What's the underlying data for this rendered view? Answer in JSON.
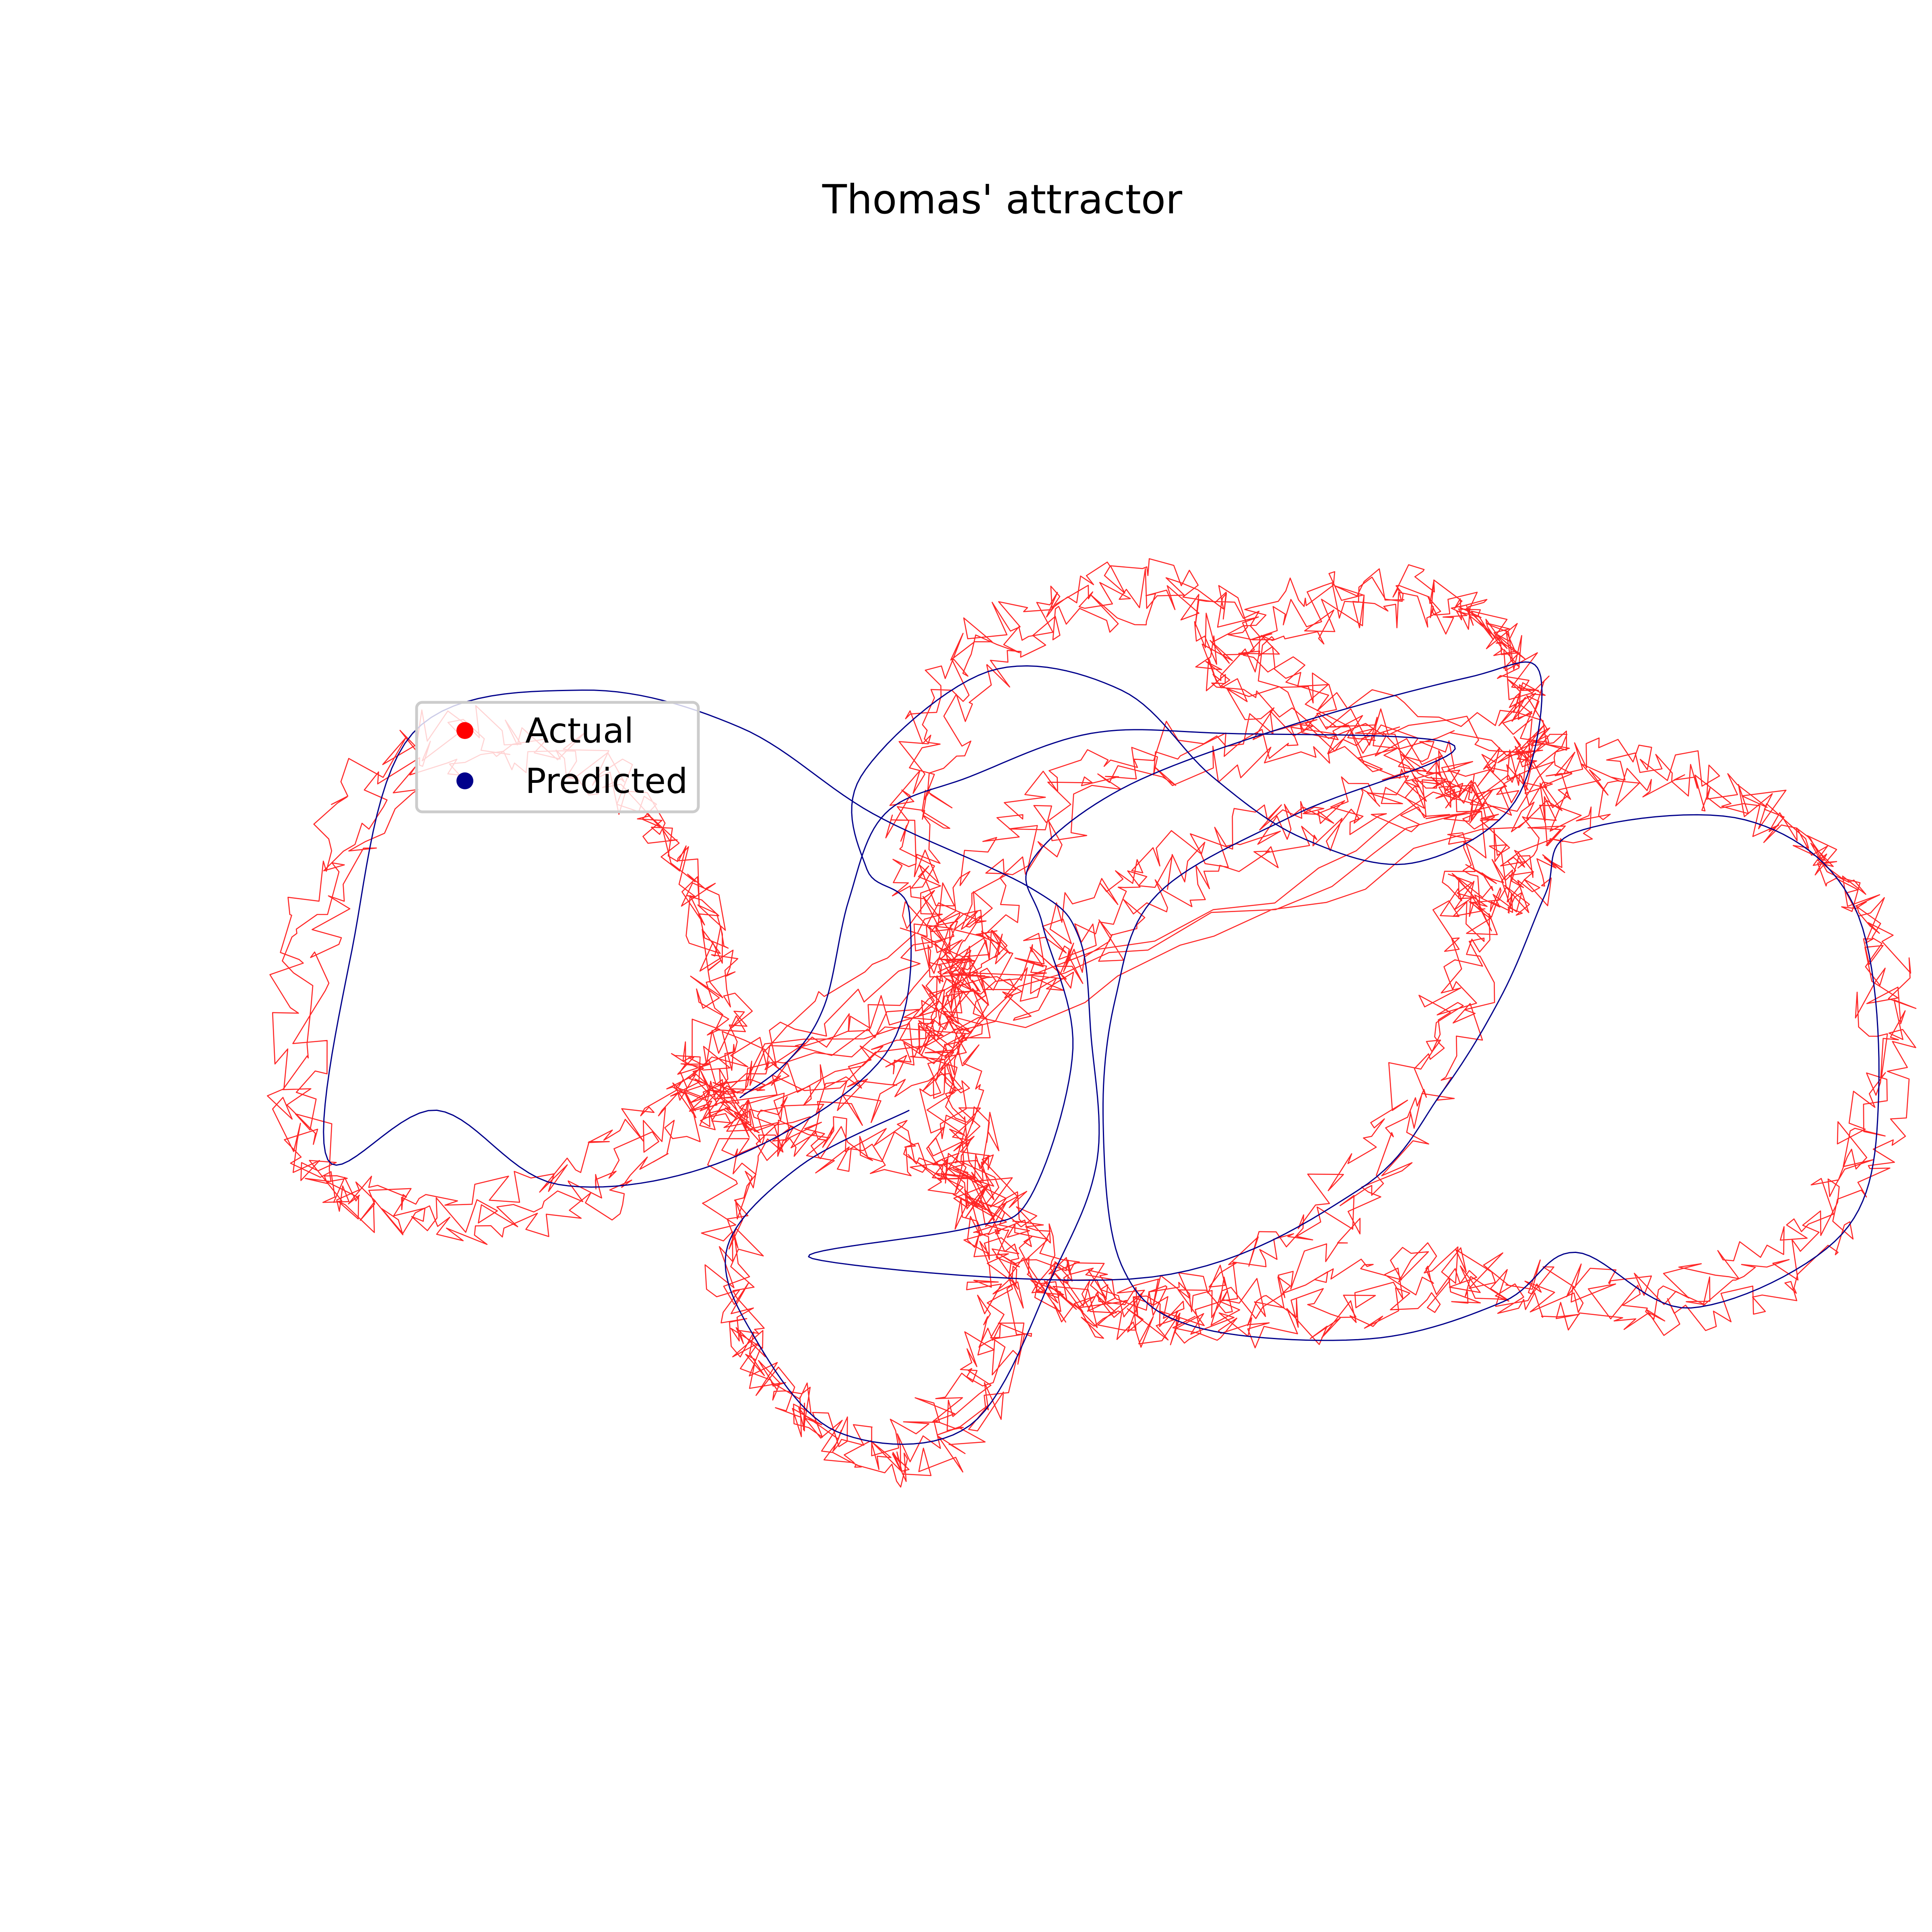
{
  "chart_data": {
    "type": "line",
    "title": "Thomas' attractor",
    "axes_visible": false,
    "grid": false,
    "legend_placement": "center-left",
    "series": [
      {
        "name": "Actual",
        "color": "#ff0000",
        "style": "thin noisy line",
        "values": [
          [
            3.77,
            1.5
          ],
          [
            2.5,
            1.8
          ],
          [
            0.7,
            1.45
          ],
          [
            -0.2,
            0.45
          ],
          [
            -0.55,
            -0.9
          ],
          [
            -0.05,
            -2.15
          ],
          [
            0.6,
            -2.8
          ],
          [
            1.6,
            -2.75
          ],
          [
            2.7,
            -2.05
          ],
          [
            3.55,
            -0.8
          ],
          [
            3.82,
            0.45
          ],
          [
            3.75,
            1.4
          ],
          [
            1.75,
            2.25
          ],
          [
            2.4,
            2.85
          ],
          [
            3.45,
            2.95
          ],
          [
            4.1,
            2.6
          ],
          [
            4.35,
            1.95
          ],
          [
            4.1,
            1.45
          ],
          [
            3.3,
            1.3
          ],
          [
            2.3,
            1.1
          ],
          [
            1.2,
            0.65
          ],
          [
            0.45,
            0.05
          ],
          [
            -0.15,
            -0.3
          ],
          [
            -2.3,
            -1.0
          ],
          [
            -1.85,
            -1.4
          ],
          [
            -0.85,
            -1.55
          ],
          [
            -0.3,
            -1.9
          ],
          [
            -0.05,
            -2.7
          ],
          [
            -0.25,
            -3.5
          ],
          [
            -0.95,
            -4.0
          ],
          [
            -1.75,
            -3.6
          ],
          [
            -2.25,
            -2.75
          ],
          [
            -2.05,
            -1.45
          ],
          [
            -0.9,
            -0.9
          ],
          [
            -0.35,
            -0.25
          ],
          [
            -0.6,
            0.3
          ],
          [
            -0.75,
            1.2
          ],
          [
            -0.35,
            2.3
          ],
          [
            0.5,
            2.9
          ],
          [
            1.6,
            2.95
          ],
          [
            2.7,
            2.05
          ],
          [
            4.35,
            1.45
          ],
          [
            -2.0,
            -0.95
          ],
          [
            -2.3,
            -0.5
          ],
          [
            -2.5,
            0.5
          ],
          [
            -3.3,
            1.5
          ],
          [
            -4.7,
            1.75
          ],
          [
            -5.7,
            0.5
          ],
          [
            -5.8,
            -1.5
          ],
          [
            -5.0,
            -2.0
          ],
          [
            -3.7,
            -1.9
          ],
          [
            -2.75,
            -1.25
          ],
          [
            -2.15,
            -0.85
          ],
          [
            -0.2,
            0.3
          ],
          [
            -0.45,
            -0.6
          ],
          [
            -0.25,
            -1.5
          ],
          [
            0.45,
            -2.45
          ],
          [
            1.35,
            -2.85
          ],
          [
            2.5,
            -2.8
          ],
          [
            3.5,
            -2.55
          ],
          [
            4.3,
            -2.65
          ],
          [
            5.5,
            -2.75
          ],
          [
            6.6,
            -2.3
          ],
          [
            7.2,
            -1.15
          ],
          [
            7.15,
            0.25
          ],
          [
            6.35,
            1.15
          ],
          [
            5.1,
            1.55
          ],
          [
            4.5,
            1.05
          ],
          [
            4.15,
            0.6
          ],
          [
            3.8,
            0.5
          ]
        ]
      },
      {
        "name": "Predicted",
        "color": "#00008b",
        "style": "thin smooth line",
        "values": [
          [
            -2.2,
            -1.1
          ],
          [
            -1.8,
            -0.8
          ],
          [
            -1.5,
            -0.35
          ],
          [
            -1.3,
            0.5
          ],
          [
            -1.0,
            1.2
          ],
          [
            -0.3,
            1.5
          ],
          [
            0.7,
            1.85
          ],
          [
            1.8,
            1.85
          ],
          [
            3.7,
            1.75
          ],
          [
            2.4,
            1.2
          ],
          [
            1.25,
            0.55
          ],
          [
            0.9,
            -0.3
          ],
          [
            0.8,
            -1.3
          ],
          [
            0.95,
            -2.45
          ],
          [
            1.55,
            -2.95
          ],
          [
            3.0,
            -3.05
          ],
          [
            4.1,
            -2.75
          ],
          [
            4.7,
            -2.35
          ],
          [
            5.65,
            -2.8
          ],
          [
            6.9,
            -2.2
          ],
          [
            7.2,
            -1.1
          ],
          [
            7.0,
            0.45
          ],
          [
            6.1,
            1.15
          ],
          [
            4.7,
            1.05
          ],
          [
            4.45,
            0.55
          ],
          [
            4.1,
            -0.25
          ],
          [
            3.6,
            -1.05
          ],
          [
            2.9,
            -1.85
          ],
          [
            1.2,
            -2.55
          ],
          [
            -1.6,
            -2.4
          ],
          [
            -0.3,
            -2.15
          ],
          [
            0.2,
            -1.9
          ],
          [
            0.55,
            -0.7
          ],
          [
            0.3,
            0.3
          ],
          [
            0.2,
            0.8
          ],
          [
            0.95,
            1.4
          ],
          [
            2.3,
            1.9
          ],
          [
            3.8,
            2.3
          ],
          [
            4.4,
            2.35
          ],
          [
            4.2,
            1.3
          ],
          [
            3.35,
            0.8
          ],
          [
            2.45,
            1.0
          ],
          [
            1.7,
            1.5
          ],
          [
            0.95,
            2.2
          ],
          [
            -0.15,
            2.35
          ],
          [
            -1.2,
            1.5
          ],
          [
            -1.15,
            0.75
          ],
          [
            -0.8,
            0.4
          ],
          [
            -1.0,
            -0.75
          ],
          [
            -2.3,
            -1.6
          ],
          [
            -3.7,
            -1.8
          ],
          [
            -4.7,
            -1.2
          ],
          [
            -5.6,
            -1.6
          ],
          [
            -5.4,
            0.1
          ],
          [
            -4.9,
            1.85
          ],
          [
            -3.5,
            2.2
          ],
          [
            -2.2,
            1.9
          ],
          [
            -1.1,
            1.2
          ],
          [
            0.2,
            0.6
          ],
          [
            0.6,
            0.2
          ],
          [
            0.7,
            -0.6
          ],
          [
            0.75,
            -1.6
          ],
          [
            0.4,
            -2.5
          ],
          [
            -0.3,
            -3.75
          ],
          [
            -1.4,
            -3.8
          ],
          [
            -2.1,
            -3.0
          ],
          [
            -2.3,
            -2.3
          ],
          [
            -1.7,
            -1.65
          ],
          [
            -0.8,
            -1.2
          ]
        ]
      }
    ]
  }
}
